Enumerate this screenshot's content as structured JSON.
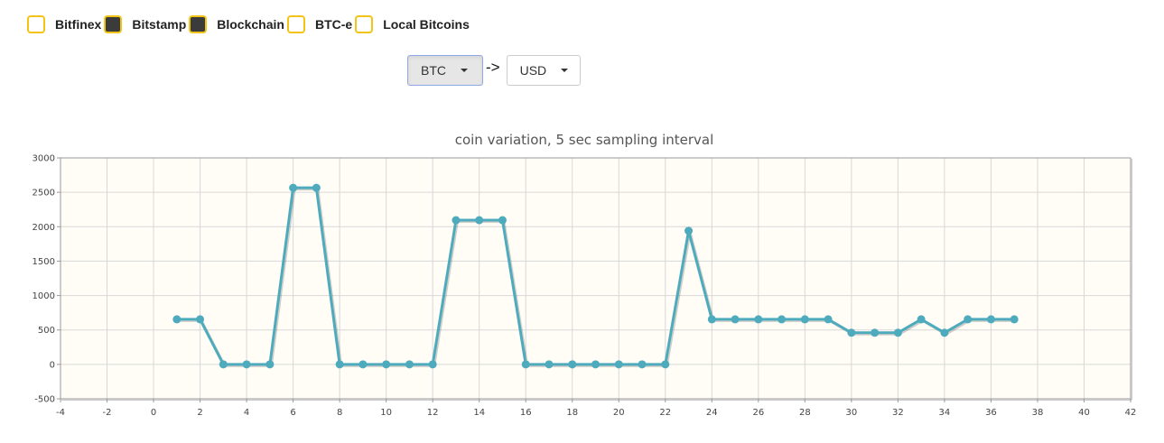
{
  "sources": [
    {
      "label": "Bitfinex",
      "checked": false
    },
    {
      "label": "Bitstamp",
      "checked": true
    },
    {
      "label": "Blockchain",
      "checked": true
    },
    {
      "label": "BTC-e",
      "checked": false
    },
    {
      "label": "Local Bitcoins",
      "checked": false
    }
  ],
  "converter": {
    "from_currency": "BTC",
    "arrow": "->",
    "to_currency": "USD"
  },
  "colors": {
    "checkbox_border": "#f2c418",
    "checkbox_checked": "#3b3b3b",
    "series_line": "#4eabbd",
    "plot_background": "#fffdf6",
    "grid": "#d8d8d8"
  },
  "chart_data": {
    "type": "line",
    "title": "coin variation, 5 sec sampling interval",
    "xlabel": "",
    "ylabel": "",
    "xlim": [
      -4,
      42
    ],
    "ylim": [
      -500,
      3000
    ],
    "xticks": [
      -4,
      -2,
      0,
      2,
      4,
      6,
      8,
      10,
      12,
      14,
      16,
      18,
      20,
      22,
      24,
      26,
      28,
      30,
      32,
      34,
      36,
      38,
      40,
      42
    ],
    "yticks": [
      -500,
      0,
      500,
      1000,
      1500,
      2000,
      2500,
      3000
    ],
    "grid": true,
    "series": [
      {
        "x": [
          1,
          2,
          3,
          4,
          5,
          6,
          7,
          8,
          9,
          10,
          11,
          12,
          13,
          14,
          15,
          16,
          17,
          18,
          19,
          20,
          21,
          22,
          23,
          24,
          25,
          26,
          27,
          28,
          29,
          30,
          31,
          32,
          33,
          34,
          35,
          36,
          37
        ],
        "values": [
          655,
          655,
          0,
          0,
          0,
          2565,
          2565,
          0,
          0,
          0,
          0,
          0,
          2095,
          2095,
          2095,
          0,
          0,
          0,
          0,
          0,
          0,
          0,
          1940,
          655,
          655,
          655,
          655,
          655,
          655,
          460,
          460,
          460,
          655,
          460,
          655,
          655,
          655
        ]
      }
    ]
  }
}
